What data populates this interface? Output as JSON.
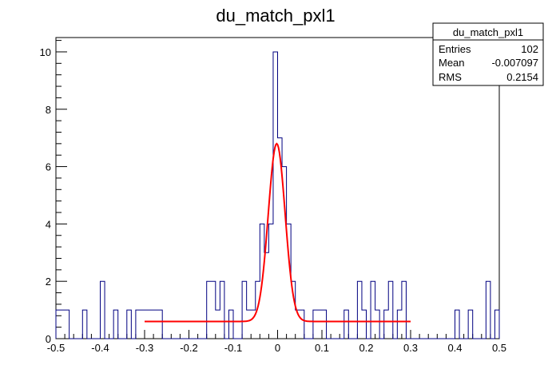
{
  "chart_data": {
    "type": "histogram",
    "title": "du_match_pxl1",
    "xlabel": "",
    "ylabel": "",
    "xlim": [
      -0.5,
      0.5
    ],
    "ylim": [
      0,
      10.5
    ],
    "grid": false,
    "bin_count": 100,
    "bin_width": 0.01,
    "x_ticks": [
      "-0.5",
      "-0.4",
      "-0.3",
      "-0.2",
      "-0.1",
      "0",
      "0.1",
      "0.2",
      "0.3",
      "0.4",
      "0.5"
    ],
    "y_ticks": [
      "0",
      "2",
      "4",
      "6",
      "8",
      "10"
    ],
    "series": [
      {
        "kind": "histogram",
        "color": "#000080",
        "bins": [
          {
            "low": -0.5,
            "high": -0.47,
            "count": 1
          },
          {
            "low": -0.47,
            "high": -0.44,
            "count": 0
          },
          {
            "low": -0.44,
            "high": -0.43,
            "count": 1
          },
          {
            "low": -0.43,
            "high": -0.4,
            "count": 0
          },
          {
            "low": -0.4,
            "high": -0.39,
            "count": 2
          },
          {
            "low": -0.39,
            "high": -0.37,
            "count": 0
          },
          {
            "low": -0.37,
            "high": -0.36,
            "count": 1
          },
          {
            "low": -0.36,
            "high": -0.34,
            "count": 0
          },
          {
            "low": -0.34,
            "high": -0.33,
            "count": 1
          },
          {
            "low": -0.33,
            "high": -0.32,
            "count": 0
          },
          {
            "low": -0.32,
            "high": -0.26,
            "count": 1
          },
          {
            "low": -0.26,
            "high": -0.16,
            "count": 0
          },
          {
            "low": -0.16,
            "high": -0.14,
            "count": 2
          },
          {
            "low": -0.14,
            "high": -0.13,
            "count": 1
          },
          {
            "low": -0.13,
            "high": -0.12,
            "count": 2
          },
          {
            "low": -0.12,
            "high": -0.11,
            "count": 0
          },
          {
            "low": -0.11,
            "high": -0.1,
            "count": 1
          },
          {
            "low": -0.1,
            "high": -0.08,
            "count": 0
          },
          {
            "low": -0.08,
            "high": -0.07,
            "count": 2
          },
          {
            "low": -0.07,
            "high": -0.05,
            "count": 1
          },
          {
            "low": -0.05,
            "high": -0.04,
            "count": 2
          },
          {
            "low": -0.04,
            "high": -0.03,
            "count": 4
          },
          {
            "low": -0.03,
            "high": -0.02,
            "count": 3
          },
          {
            "low": -0.02,
            "high": -0.01,
            "count": 4
          },
          {
            "low": -0.01,
            "high": 0.0,
            "count": 10
          },
          {
            "low": 0.0,
            "high": 0.01,
            "count": 7
          },
          {
            "low": 0.01,
            "high": 0.02,
            "count": 6
          },
          {
            "low": 0.02,
            "high": 0.03,
            "count": 4
          },
          {
            "low": 0.03,
            "high": 0.04,
            "count": 2
          },
          {
            "low": 0.04,
            "high": 0.06,
            "count": 1
          },
          {
            "low": 0.06,
            "high": 0.08,
            "count": 0
          },
          {
            "low": 0.08,
            "high": 0.11,
            "count": 1
          },
          {
            "low": 0.11,
            "high": 0.15,
            "count": 0
          },
          {
            "low": 0.15,
            "high": 0.16,
            "count": 1
          },
          {
            "low": 0.16,
            "high": 0.18,
            "count": 0
          },
          {
            "low": 0.18,
            "high": 0.19,
            "count": 2
          },
          {
            "low": 0.19,
            "high": 0.2,
            "count": 1
          },
          {
            "low": 0.2,
            "high": 0.21,
            "count": 0
          },
          {
            "low": 0.21,
            "high": 0.22,
            "count": 2
          },
          {
            "low": 0.22,
            "high": 0.23,
            "count": 1
          },
          {
            "low": 0.23,
            "high": 0.24,
            "count": 0
          },
          {
            "low": 0.24,
            "high": 0.25,
            "count": 1
          },
          {
            "low": 0.25,
            "high": 0.26,
            "count": 2
          },
          {
            "low": 0.26,
            "high": 0.27,
            "count": 0
          },
          {
            "low": 0.27,
            "high": 0.28,
            "count": 1
          },
          {
            "low": 0.28,
            "high": 0.29,
            "count": 2
          },
          {
            "low": 0.29,
            "high": 0.4,
            "count": 0
          },
          {
            "low": 0.4,
            "high": 0.41,
            "count": 1
          },
          {
            "low": 0.41,
            "high": 0.43,
            "count": 0
          },
          {
            "low": 0.43,
            "high": 0.44,
            "count": 1
          },
          {
            "low": 0.44,
            "high": 0.47,
            "count": 0
          },
          {
            "low": 0.47,
            "high": 0.48,
            "count": 2
          },
          {
            "low": 0.48,
            "high": 0.49,
            "count": 0
          },
          {
            "low": 0.49,
            "high": 0.5,
            "count": 1
          }
        ]
      },
      {
        "kind": "fit",
        "function": "gaussian_plus_constant",
        "color": "#ff0000",
        "constant": 0.6,
        "amplitude": 6.2,
        "mean": -0.002,
        "sigma": 0.019,
        "x_range": [
          -0.3,
          0.3
        ]
      }
    ],
    "stats_box": {
      "title": "du_match_pxl1",
      "placement": "top-right",
      "rows": [
        {
          "label": "Entries",
          "value": "102"
        },
        {
          "label": "Mean",
          "value": "-0.007097"
        },
        {
          "label": "RMS",
          "value": "0.2154"
        }
      ]
    }
  }
}
